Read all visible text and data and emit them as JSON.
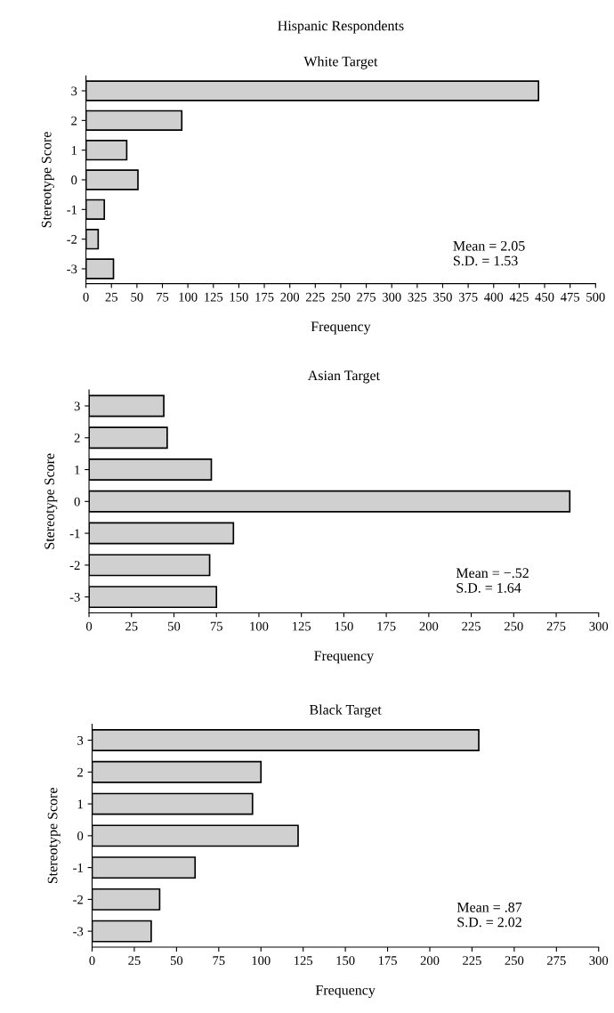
{
  "chart_data": [
    {
      "type": "bar",
      "orientation": "horizontal",
      "title": "Hispanic Respondents",
      "subtitle": "White Target",
      "xlabel": "Frequency",
      "ylabel": "Stereotype Score",
      "categories": [
        "3",
        "2",
        "1",
        "0",
        "-1",
        "-2",
        "-3"
      ],
      "values": [
        444,
        94,
        40,
        51,
        18,
        12,
        27
      ],
      "color": "#d0d0d0",
      "xlim": [
        0,
        500
      ],
      "xticks": [
        0,
        25,
        50,
        75,
        100,
        125,
        150,
        175,
        200,
        225,
        250,
        275,
        300,
        325,
        350,
        375,
        400,
        425,
        450,
        475,
        500
      ],
      "annotations": [
        "Mean = 2.05\nS.D. = 1.53"
      ],
      "grid": false
    },
    {
      "type": "bar",
      "orientation": "horizontal",
      "title": "Asian Target",
      "xlabel": "Frequency",
      "ylabel": "Stereotype Score",
      "categories": [
        "3",
        "2",
        "1",
        "0",
        "-1",
        "-2",
        "-3"
      ],
      "values": [
        44,
        46,
        72,
        283,
        85,
        71,
        75
      ],
      "color": "#d0d0d0",
      "xlim": [
        0,
        300
      ],
      "xticks": [
        0,
        25,
        50,
        75,
        100,
        125,
        150,
        175,
        200,
        225,
        250,
        275,
        300
      ],
      "annotations": [
        "Mean = −.52\nS.D. = 1.64"
      ],
      "grid": false
    },
    {
      "type": "bar",
      "orientation": "horizontal",
      "title": "Black Target",
      "xlabel": "Frequency",
      "ylabel": "Stereotype Score",
      "categories": [
        "3",
        "2",
        "1",
        "0",
        "-1",
        "-2",
        "-3"
      ],
      "values": [
        229,
        100,
        95,
        122,
        61,
        40,
        35
      ],
      "color": "#d0d0d0",
      "xlim": [
        0,
        300
      ],
      "xticks": [
        0,
        25,
        50,
        75,
        100,
        125,
        150,
        175,
        200,
        225,
        250,
        275,
        300
      ],
      "annotations": [
        "Mean = .87\nS.D. = 2.02"
      ],
      "grid": false
    }
  ]
}
